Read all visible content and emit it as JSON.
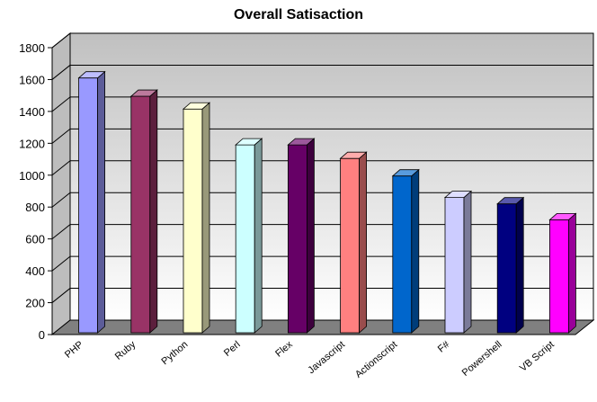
{
  "chart_data": {
    "type": "bar",
    "title": "Overall Satisaction",
    "xlabel": "",
    "ylabel": "",
    "ylim": [
      0,
      1800
    ],
    "yticks": [
      0,
      200,
      400,
      600,
      800,
      1000,
      1200,
      1400,
      1600,
      1800
    ],
    "grid": true,
    "legend": "none",
    "categories": [
      "PHP",
      "Ruby",
      "Python",
      "Perl",
      "Flex",
      "Javascript",
      "Actionscript",
      "F#",
      "Powershell",
      "VB Script"
    ],
    "values": [
      1610,
      1495,
      1415,
      1190,
      1190,
      1105,
      995,
      860,
      820,
      720
    ],
    "colors": [
      "#9999ff",
      "#993366",
      "#ffffcc",
      "#ccffff",
      "#660066",
      "#ff8080",
      "#0066cc",
      "#ccccff",
      "#000080",
      "#ff00ff"
    ],
    "background": {
      "wall_top": "#c0c0c0",
      "wall_bottom": "#ffffff",
      "floor": "#808080"
    }
  }
}
